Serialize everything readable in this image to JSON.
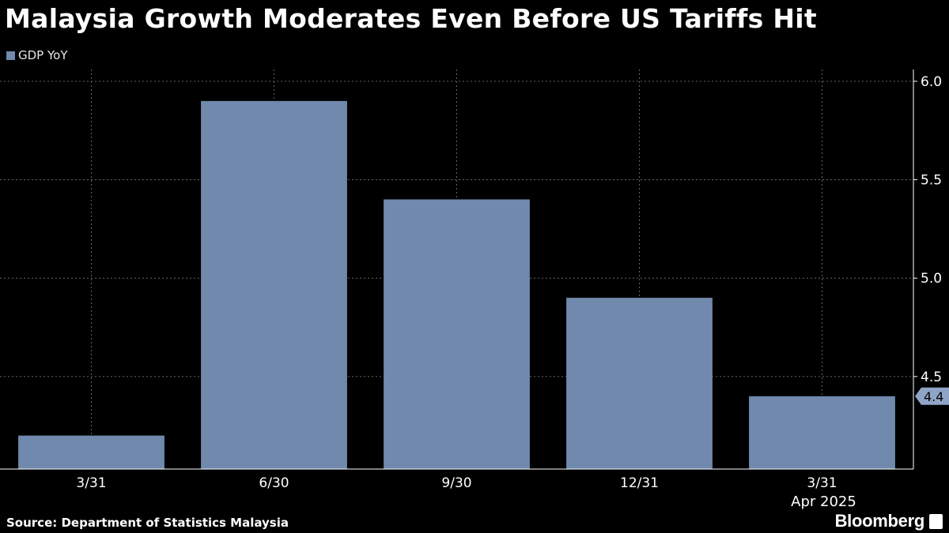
{
  "title": "Malaysia Growth Moderates Even Before US Tariffs Hit",
  "source": "Source: Department of Statistics Malaysia",
  "brand": "Bloomberg",
  "colors": {
    "background": "#000000",
    "bar": "#7089ad",
    "grid": "#666666",
    "last_value_tag": "#8fa5c8"
  },
  "chart_data": {
    "type": "bar",
    "categories": [
      "3/31",
      "6/30",
      "9/30",
      "12/31",
      "3/31"
    ],
    "series": [
      {
        "name": "GDP YoY",
        "values": [
          4.2,
          5.9,
          5.4,
          4.9,
          4.4
        ]
      }
    ],
    "y_ticks": [
      "6.0",
      "5.5",
      "5.0",
      "4.5"
    ],
    "ylim": [
      4.03,
      6.06
    ],
    "period_label": "Apr 2025",
    "last_value_label": "4.4",
    "grid": true,
    "y_axis_position": "right",
    "legend_position": "top-left"
  }
}
